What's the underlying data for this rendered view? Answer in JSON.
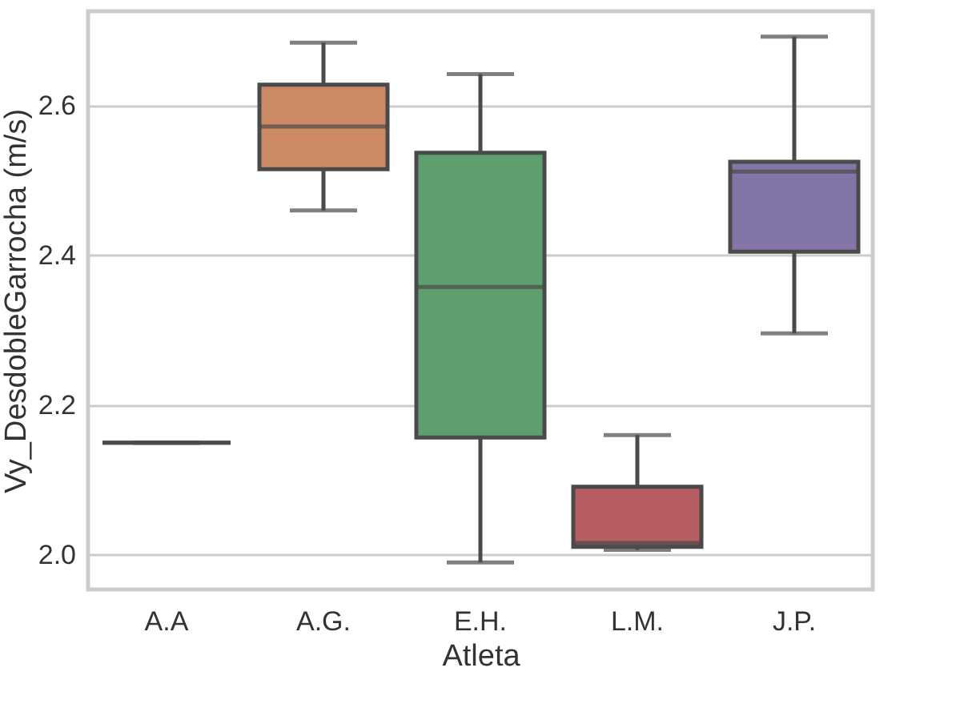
{
  "chart_data": {
    "type": "box",
    "xlabel": "Atleta",
    "ylabel": "Vy_DesdobleGarrocha (m/s)",
    "categories": [
      "A.A",
      "A.G.",
      "E.H.",
      "L.M.",
      "J.P."
    ],
    "colors": [
      "#4a4a4a",
      "#cc8963",
      "#5f9e6e",
      "#b55d60",
      "#8475a8"
    ],
    "boxes": [
      {
        "low": 2.15,
        "q1": 2.15,
        "median": 2.15,
        "q3": 2.15,
        "high": 2.15
      },
      {
        "low": 2.46,
        "q1": 2.515,
        "median": 2.572,
        "q3": 2.628,
        "high": 2.684
      },
      {
        "low": 1.99,
        "q1": 2.157,
        "median": 2.358,
        "q3": 2.537,
        "high": 2.642
      },
      {
        "low": 2.007,
        "q1": 2.011,
        "median": 2.016,
        "q3": 2.091,
        "high": 2.16
      },
      {
        "low": 2.296,
        "q1": 2.405,
        "median": 2.512,
        "q3": 2.525,
        "high": 2.692
      }
    ],
    "ylim": [
      1.954,
      2.726
    ],
    "yticks": [
      {
        "value": 2,
        "label": "2.0"
      },
      {
        "value": 2.2,
        "label": "2.2"
      },
      {
        "value": 2.4,
        "label": "2.4"
      },
      {
        "value": 2.6,
        "label": "2.6"
      }
    ],
    "grid": "y"
  }
}
